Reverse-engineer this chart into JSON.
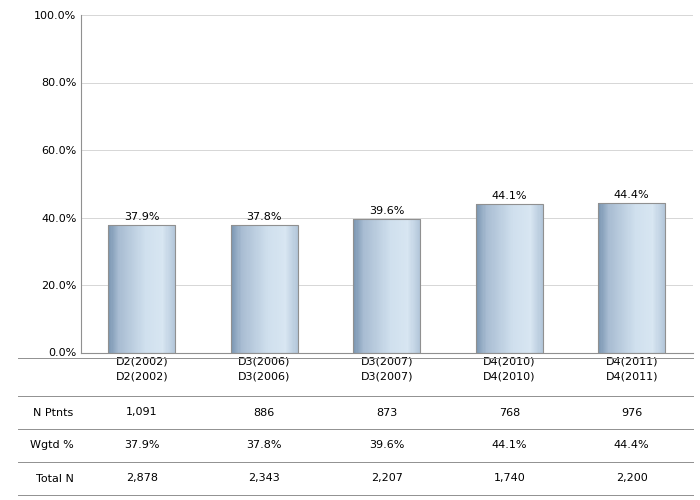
{
  "categories": [
    "D2(2002)",
    "D3(2006)",
    "D3(2007)",
    "D4(2010)",
    "D4(2011)"
  ],
  "values": [
    37.9,
    37.8,
    39.6,
    44.1,
    44.4
  ],
  "n_ptnts": [
    "1,091",
    "886",
    "873",
    "768",
    "976"
  ],
  "wgtd_pct": [
    "37.9%",
    "37.8%",
    "39.6%",
    "44.1%",
    "44.4%"
  ],
  "total_n": [
    "2,878",
    "2,343",
    "2,207",
    "1,740",
    "2,200"
  ],
  "row_labels": [
    "N Ptnts",
    "Wgtd %",
    "Total N"
  ],
  "ylim": [
    0,
    100
  ],
  "yticks": [
    0,
    20,
    40,
    60,
    80,
    100
  ],
  "ytick_labels": [
    "0.0%",
    "20.0%",
    "40.0%",
    "60.0%",
    "80.0%",
    "100.0%"
  ],
  "label_fontsize": 8,
  "tick_fontsize": 8,
  "table_fontsize": 8,
  "bg_color": "#ffffff",
  "grid_color": "#d0d0d0"
}
